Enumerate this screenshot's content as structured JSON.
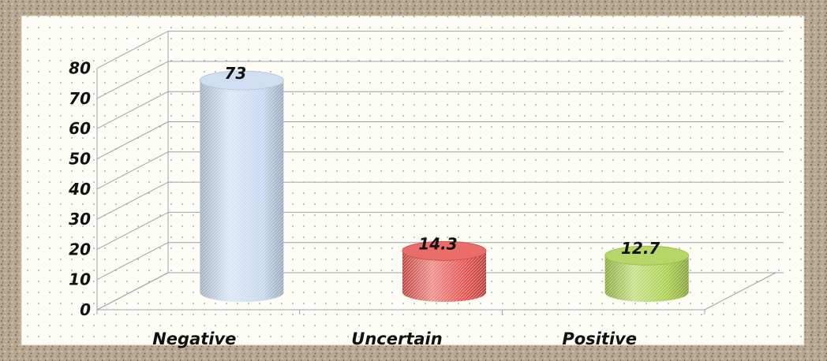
{
  "chart_data": {
    "type": "bar",
    "style": "3d-cylinder",
    "categories": [
      "Negative",
      "Uncertain",
      "Positive"
    ],
    "values": [
      73,
      14.3,
      12.7
    ],
    "data_labels": [
      "73",
      "14.3",
      "12.7"
    ],
    "ylim": [
      0,
      80
    ],
    "y_ticks": [
      "0",
      "10",
      "20",
      "30",
      "40",
      "50",
      "60",
      "70",
      "80"
    ],
    "grid": true,
    "legend": "none",
    "colors": {
      "Negative": "#c6d8ef",
      "Uncertain": "#e8534f",
      "Positive": "#a9cf4c",
      "frame": "#b7a48e",
      "plot_background": "#fdfdf6"
    }
  }
}
